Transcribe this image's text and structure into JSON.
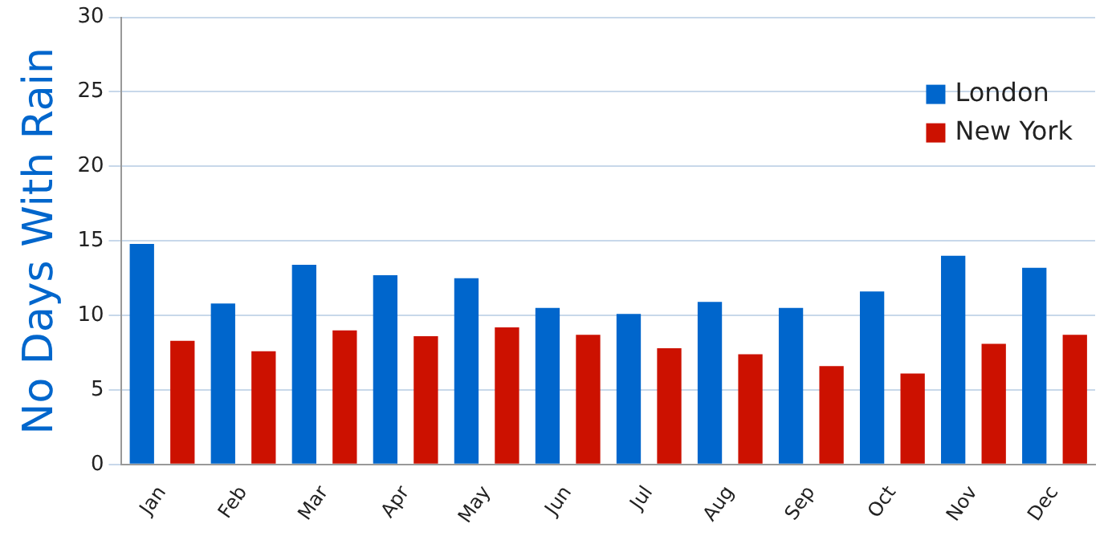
{
  "chart_data": {
    "type": "bar",
    "ylabel": "No Days With Rain",
    "categories": [
      "Jan",
      "Feb",
      "Mar",
      "Apr",
      "May",
      "Jun",
      "Jul",
      "Aug",
      "Sep",
      "Oct",
      "Nov",
      "Dec"
    ],
    "series": [
      {
        "name": "London",
        "color": "#0066cc",
        "values": [
          14.8,
          10.8,
          13.4,
          12.7,
          12.5,
          10.5,
          10.1,
          10.9,
          10.5,
          11.6,
          14.0,
          13.2
        ]
      },
      {
        "name": "New York",
        "color": "#cc1100",
        "values": [
          8.3,
          7.6,
          9.0,
          8.6,
          9.2,
          8.7,
          7.8,
          7.4,
          6.6,
          6.1,
          8.1,
          8.7
        ]
      }
    ],
    "ylim": [
      0,
      30
    ],
    "yticks": [
      0,
      5,
      10,
      15,
      20,
      25,
      30
    ],
    "grid": "y",
    "legend": "top right"
  }
}
